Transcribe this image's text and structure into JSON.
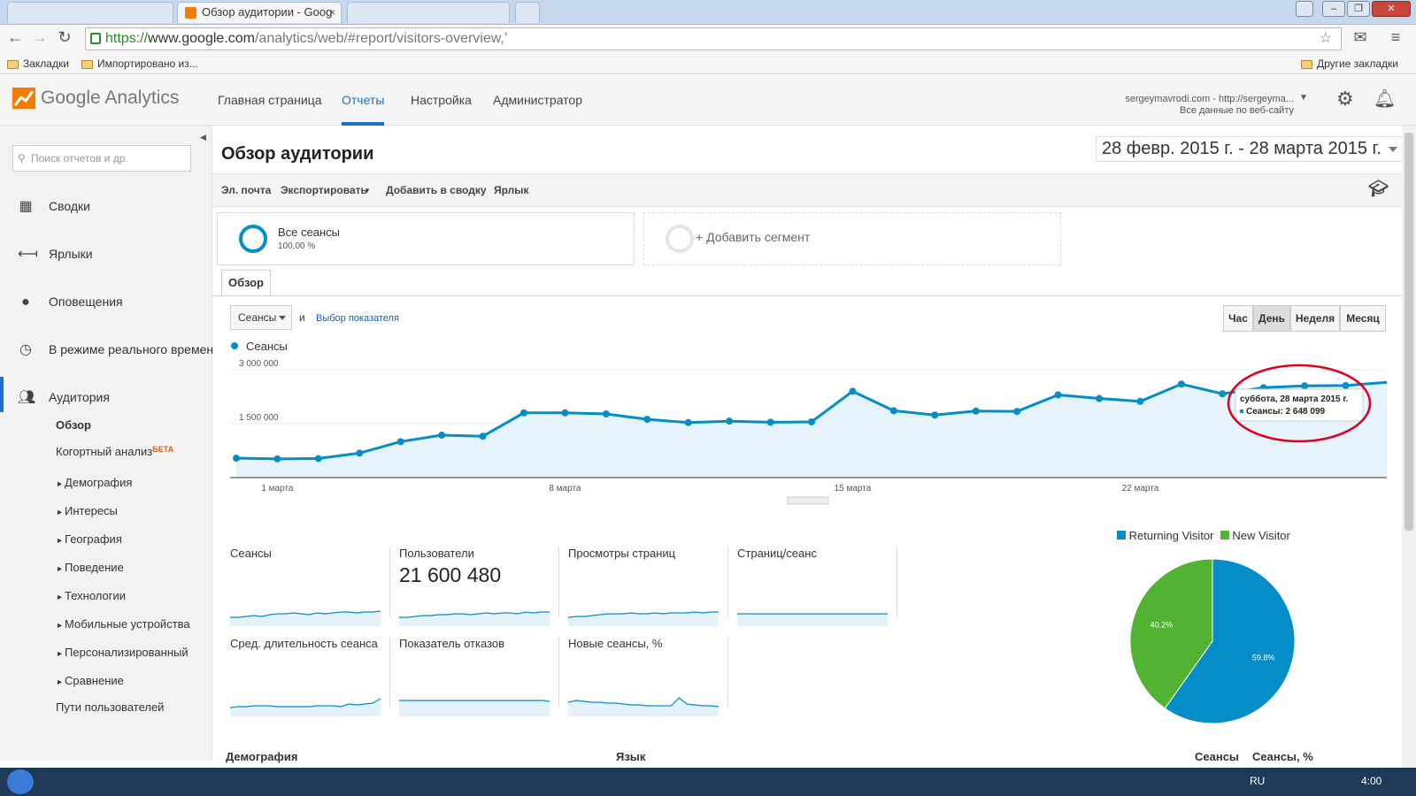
{
  "browser": {
    "active_tab": "Обзор аудитории - Goog",
    "tab_close": "×",
    "url_scheme": "https://",
    "url_host": "www.google.com",
    "url_path": "/analytics/web/#report/visitors-overview,’",
    "bookmarks": [
      "Закладки",
      "Импортировано из..."
    ],
    "other_bookmarks": "Другие закладки"
  },
  "ga": {
    "product": "Google Analytics",
    "nav": [
      "Главная страница",
      "Отчеты",
      "Настройка",
      "Администратор"
    ],
    "account_line1": "sergeymavrodi.com - http://sergeyma...",
    "account_line2": "Все данные по веб-сайту"
  },
  "sidebar": {
    "search_placeholder": "Поиск отчетов и др.",
    "items": [
      "Сводки",
      "Ярлыки",
      "Оповещения",
      "В режиме реального времен",
      "Аудитория"
    ],
    "sub_overview": "Обзор",
    "sub_cohort": "Когортный анализ",
    "sub_cohort_badge": "БЕТА",
    "sub_items": [
      "Демография",
      "Интересы",
      "География",
      "Поведение",
      "Технологии",
      "Мобильные устройства",
      "Персонализированный",
      "Сравнение"
    ],
    "sub_paths": "Пути пользователей"
  },
  "report": {
    "title": "Обзор аудитории",
    "date_range": "28 февр. 2015 г. - 28 марта 2015 г.",
    "actions": [
      "Эл. почта",
      "Экспортировать",
      "Добавить в сводку",
      "Ярлык"
    ],
    "segment_name": "Все сеансы",
    "segment_pct": "100,00 %",
    "add_segment": "+ Добавить сегмент",
    "tab": "Обзор",
    "metric": "Сеансы",
    "and": "и",
    "choose_metric": "Выбор показателя",
    "granularity": [
      "Час",
      "День",
      "Неделя",
      "Месяц"
    ]
  },
  "chart_data": [
    {
      "type": "area",
      "series": [
        {
          "name": "Сеансы",
          "color": "#058dc7",
          "values": [
            540000,
            520000,
            530000,
            680000,
            1000000,
            1180000,
            1150000,
            1800000,
            1800000,
            1770000,
            1620000,
            1530000,
            1570000,
            1540000,
            1550000,
            2400000,
            1860000,
            1740000,
            1850000,
            1840000,
            2300000,
            2200000,
            2120000,
            2600000,
            2330000,
            2500000,
            2550000,
            2560000,
            2648099
          ]
        }
      ],
      "x_ticks": [
        "1 марта",
        "8 марта",
        "15 марта",
        "22 марта"
      ],
      "y_ticks": [
        "3 000 000",
        "1 500 000"
      ],
      "ylim": [
        0,
        3000000
      ],
      "tooltip_title": "суббота, 28 марта 2015 г.",
      "tooltip_value": "Сеансы: 2 648 099"
    },
    {
      "type": "pie",
      "categories": [
        "Returning Visitor",
        "New Visitor"
      ],
      "values": [
        59.8,
        40.2
      ],
      "labels": [
        "59.8%",
        "40.2%"
      ],
      "colors": [
        "#058dc7",
        "#50b432"
      ]
    }
  ],
  "metrics": [
    {
      "label": "Сеансы",
      "value": ""
    },
    {
      "label": "Пользователи",
      "value": "21 600 480"
    },
    {
      "label": "Просмотры страниц",
      "value": ""
    },
    {
      "label": "Страниц/сеанс",
      "value": ""
    },
    {
      "label": "Сред. длительность сеанса",
      "value": ""
    },
    {
      "label": "Показатель отказов",
      "value": ""
    },
    {
      "label": "Новые сеансы, %",
      "value": ""
    }
  ],
  "bottom": {
    "demography": "Демография",
    "language": "Язык",
    "sessions": "Сеансы",
    "sessions_pct": "Сеансы, %"
  },
  "taskbar": {
    "lang": "RU",
    "clock": "4:00"
  },
  "colors": {
    "accent": "#1a73c8",
    "series": "#058dc7",
    "new_visitor": "#50b432",
    "highlight": "#e0001b"
  }
}
